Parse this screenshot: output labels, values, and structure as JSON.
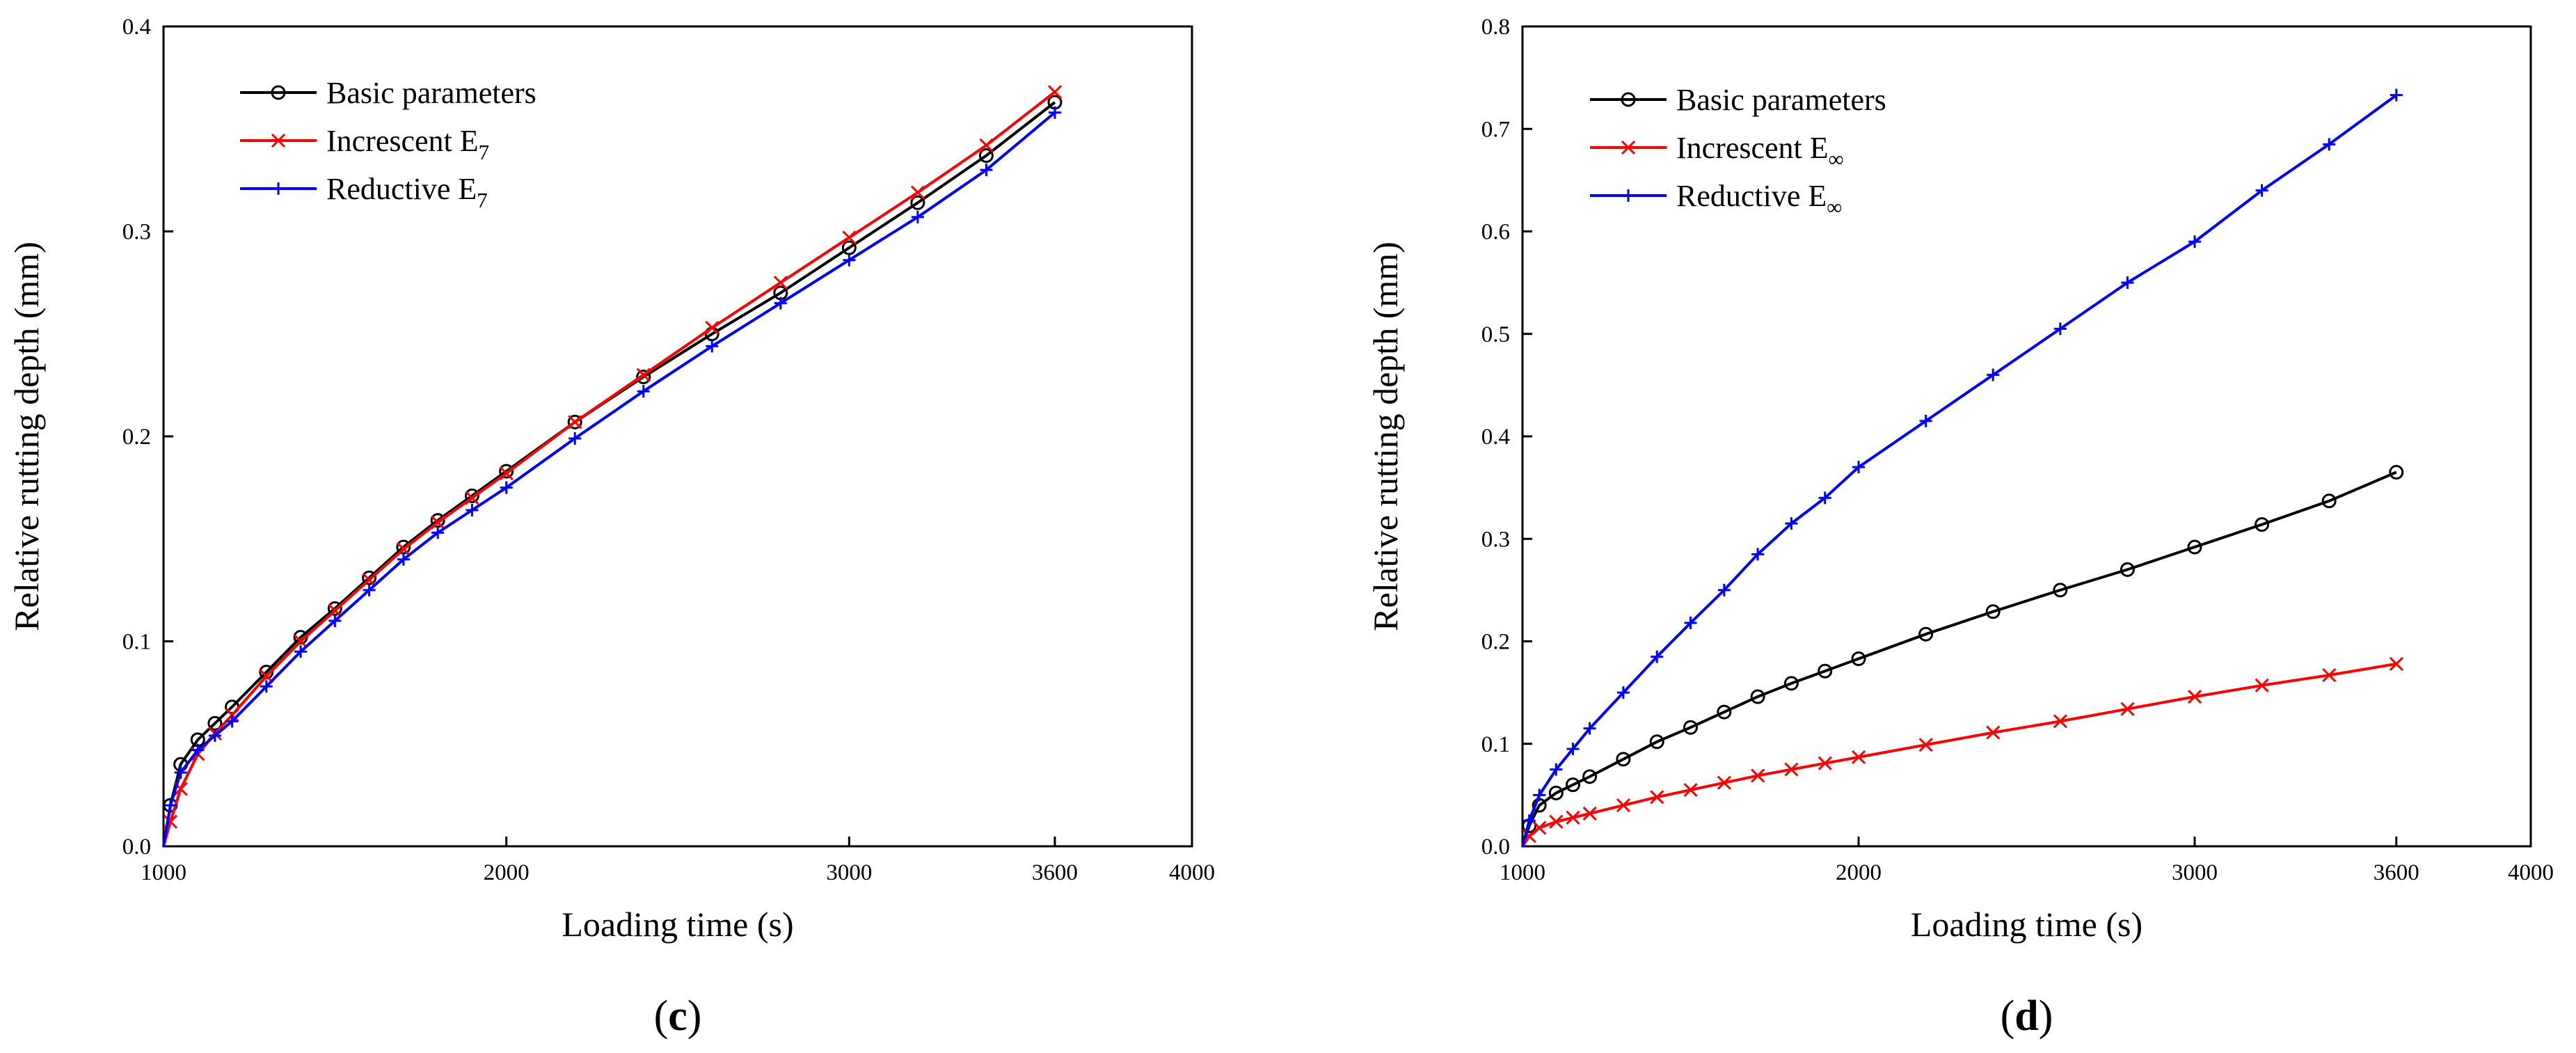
{
  "chart_data": [
    {
      "type": "line",
      "panel_label": "c",
      "xlabel": "Loading time (s)",
      "ylabel": "Relative rutting depth (mm)",
      "xlim": [
        1000,
        4000
      ],
      "ylim": [
        0,
        0.4
      ],
      "xticks": [
        1000,
        2000,
        3000,
        3600,
        4000
      ],
      "yticks": [
        0.0,
        0.1,
        0.2,
        0.3,
        0.4
      ],
      "xtick_labels": [
        "1000",
        "2000",
        "3000",
        "3600",
        "4000"
      ],
      "ytick_labels": [
        "0.0",
        "0.1",
        "0.2",
        "0.3",
        "0.4"
      ],
      "legend_position": "top-left",
      "series": [
        {
          "name": "Basic parameters",
          "sub": "",
          "color": "#000000",
          "marker": "circle",
          "x": [
            1000,
            1020,
            1050,
            1100,
            1150,
            1200,
            1300,
            1400,
            1500,
            1600,
            1700,
            1800,
            1900,
            2000,
            2200,
            2400,
            2600,
            2800,
            3000,
            3200,
            3400,
            3600
          ],
          "y": [
            0.0,
            0.02,
            0.04,
            0.052,
            0.06,
            0.068,
            0.085,
            0.102,
            0.116,
            0.131,
            0.146,
            0.159,
            0.171,
            0.183,
            0.207,
            0.229,
            0.25,
            0.27,
            0.292,
            0.314,
            0.337,
            0.363
          ]
        },
        {
          "name": "Increscent E",
          "sub": "7",
          "color": "#ff0000",
          "marker": "x",
          "x": [
            1000,
            1020,
            1050,
            1100,
            1150,
            1200,
            1300,
            1400,
            1500,
            1600,
            1700,
            1800,
            1900,
            2000,
            2200,
            2400,
            2600,
            2800,
            3000,
            3200,
            3400,
            3600
          ],
          "y": [
            0.0,
            0.012,
            0.028,
            0.045,
            0.055,
            0.064,
            0.083,
            0.1,
            0.115,
            0.13,
            0.145,
            0.158,
            0.17,
            0.182,
            0.207,
            0.23,
            0.253,
            0.275,
            0.297,
            0.319,
            0.342,
            0.368
          ]
        },
        {
          "name": "Reductive E",
          "sub": "7",
          "color": "#0000ff",
          "marker": "plus",
          "x": [
            1000,
            1020,
            1050,
            1100,
            1150,
            1200,
            1300,
            1400,
            1500,
            1600,
            1700,
            1800,
            1900,
            2000,
            2200,
            2400,
            2600,
            2800,
            3000,
            3200,
            3400,
            3600
          ],
          "y": [
            0.0,
            0.02,
            0.036,
            0.047,
            0.054,
            0.061,
            0.078,
            0.095,
            0.11,
            0.125,
            0.14,
            0.153,
            0.164,
            0.175,
            0.199,
            0.222,
            0.244,
            0.265,
            0.286,
            0.307,
            0.33,
            0.358
          ]
        }
      ]
    },
    {
      "type": "line",
      "panel_label": "d",
      "xlabel": "Loading time (s)",
      "ylabel": "Relative rutting depth (mm)",
      "xlim": [
        1000,
        4000
      ],
      "ylim": [
        0,
        0.8
      ],
      "xticks": [
        1000,
        2000,
        3000,
        3600,
        4000
      ],
      "yticks": [
        0.0,
        0.1,
        0.2,
        0.3,
        0.4,
        0.5,
        0.6,
        0.7,
        0.8
      ],
      "xtick_labels": [
        "1000",
        "2000",
        "3000",
        "3600",
        "4000"
      ],
      "ytick_labels": [
        "0.0",
        "0.1",
        "0.2",
        "0.3",
        "0.4",
        "0.5",
        "0.6",
        "0.7",
        "0.8"
      ],
      "legend_position": "top-left",
      "series": [
        {
          "name": "Basic parameters",
          "sub": "",
          "color": "#000000",
          "marker": "circle",
          "x": [
            1000,
            1020,
            1050,
            1100,
            1150,
            1200,
            1300,
            1400,
            1500,
            1600,
            1700,
            1800,
            1900,
            2000,
            2200,
            2400,
            2600,
            2800,
            3000,
            3200,
            3400,
            3600
          ],
          "y": [
            0.0,
            0.02,
            0.04,
            0.052,
            0.06,
            0.068,
            0.085,
            0.102,
            0.116,
            0.131,
            0.146,
            0.159,
            0.171,
            0.183,
            0.207,
            0.229,
            0.25,
            0.27,
            0.292,
            0.314,
            0.337,
            0.365
          ]
        },
        {
          "name": "Increscent E",
          "sub": "∞",
          "color": "#ff0000",
          "marker": "x",
          "x": [
            1000,
            1020,
            1050,
            1100,
            1150,
            1200,
            1300,
            1400,
            1500,
            1600,
            1700,
            1800,
            1900,
            2000,
            2200,
            2400,
            2600,
            2800,
            3000,
            3200,
            3400,
            3600
          ],
          "y": [
            0.0,
            0.01,
            0.018,
            0.024,
            0.028,
            0.032,
            0.04,
            0.048,
            0.055,
            0.062,
            0.069,
            0.075,
            0.081,
            0.087,
            0.099,
            0.111,
            0.122,
            0.134,
            0.146,
            0.157,
            0.167,
            0.178
          ]
        },
        {
          "name": "Reductive E",
          "sub": "∞",
          "color": "#0000ff",
          "marker": "plus",
          "x": [
            1000,
            1020,
            1050,
            1100,
            1150,
            1200,
            1300,
            1400,
            1500,
            1600,
            1700,
            1800,
            1900,
            2000,
            2200,
            2400,
            2600,
            2800,
            3000,
            3200,
            3400,
            3600
          ],
          "y": [
            0.0,
            0.025,
            0.05,
            0.075,
            0.095,
            0.115,
            0.15,
            0.185,
            0.218,
            0.25,
            0.285,
            0.315,
            0.34,
            0.37,
            0.415,
            0.46,
            0.505,
            0.55,
            0.59,
            0.64,
            0.685,
            0.733
          ]
        }
      ]
    }
  ]
}
